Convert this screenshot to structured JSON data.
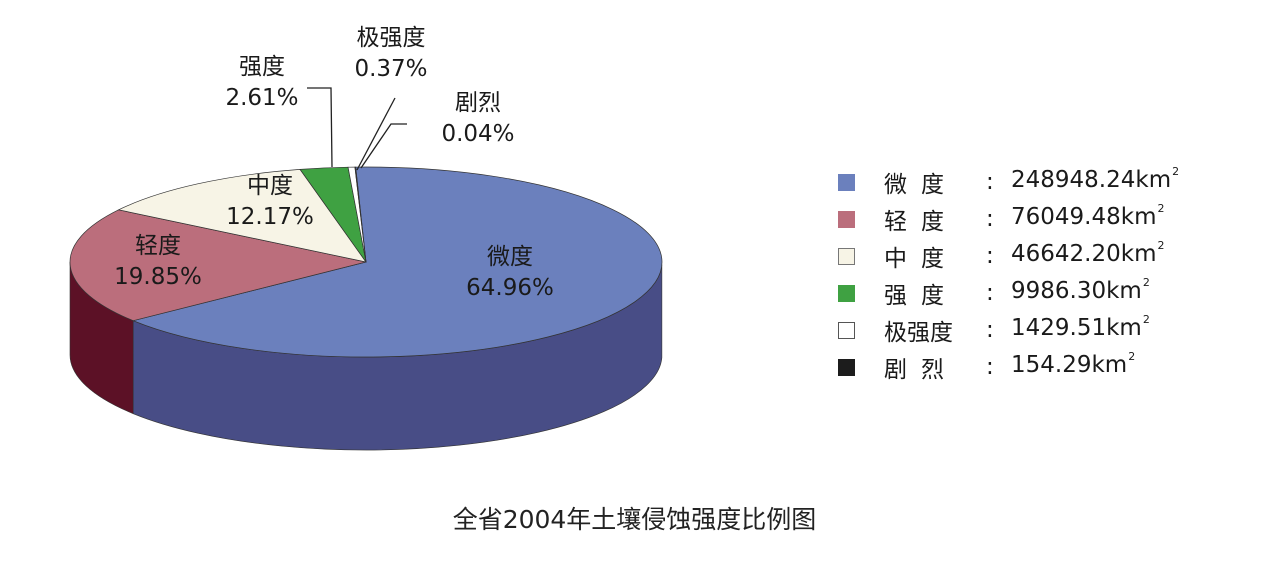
{
  "chart_data": {
    "type": "pie",
    "title": "全省2004年土壤侵蚀强度比例图",
    "unit": "km²",
    "slices": [
      {
        "label": "微度",
        "legend_name": "微度",
        "percent_text": "64.96%",
        "percent": 64.96,
        "value_text": "248948.24km",
        "value": 248948.24,
        "color": "#6b80bd",
        "side": "#484d86",
        "swatch_border": "#6b80bd"
      },
      {
        "label": "轻度",
        "legend_name": "轻度",
        "percent_text": "19.85%",
        "percent": 19.85,
        "value_text": "76049.48km",
        "value": 76049.48,
        "color": "#bb6e7c",
        "side": "#5c1126",
        "swatch_border": "#bb6e7c"
      },
      {
        "label": "中度",
        "legend_name": "中度",
        "percent_text": "12.17%",
        "percent": 12.17,
        "value_text": "46642.20km",
        "value": 46642.2,
        "color": "#f7f4e6",
        "side": "#bfb9a4",
        "swatch_border": "#777777"
      },
      {
        "label": "强度",
        "legend_name": "强度",
        "percent_text": "2.61%",
        "percent": 2.61,
        "value_text": "9986.30km",
        "value": 9986.3,
        "color": "#3fa142",
        "side": "#1f6a22",
        "swatch_border": "#3fa142"
      },
      {
        "label": "极强度",
        "legend_name": "极强度",
        "percent_text": "0.37%",
        "percent": 0.37,
        "value_text": "1429.51km",
        "value": 1429.51,
        "color": "#ffffff",
        "side": "#cccccc",
        "swatch_border": "#555555"
      },
      {
        "label": "剧烈",
        "legend_name": "剧烈",
        "percent_text": "0.04%",
        "percent": 0.04,
        "value_text": "154.29km",
        "value": 154.29,
        "color": "#1c1c1c",
        "side": "#000000",
        "swatch_border": "#1c1c1c"
      }
    ],
    "legend_placement": "right",
    "superscript": "2",
    "colon": ":"
  }
}
